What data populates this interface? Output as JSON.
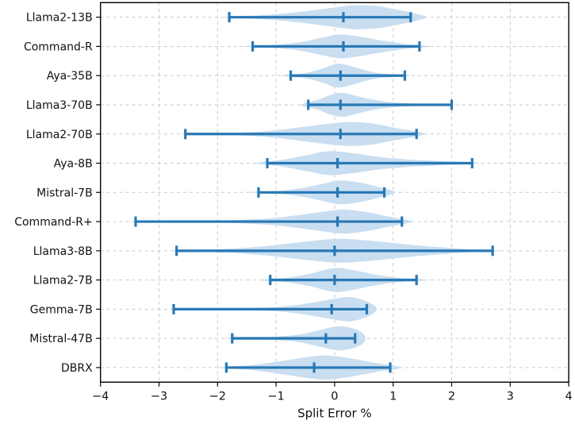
{
  "colors": {
    "line": "#2878b5",
    "fill": "#c9def0",
    "grid": "#c9c9c9",
    "spine": "#000000",
    "text": "#111111",
    "background": "#ffffff"
  },
  "chart_data": {
    "type": "violin",
    "orientation": "horizontal",
    "title": "",
    "xlabel": "Split Error %",
    "ylabel": "",
    "xlim": [
      -4,
      4
    ],
    "xticks": [
      -4,
      -3,
      -2,
      -1,
      0,
      1,
      2,
      3,
      4
    ],
    "xtick_labels": [
      "−4",
      "−3",
      "−2",
      "−1",
      "0",
      "1",
      "2",
      "3",
      "4"
    ],
    "grid": true,
    "grid_style": "dashed",
    "legend": "none",
    "categories": [
      "Llama2-13B",
      "Command-R",
      "Aya-35B",
      "Llama3-70B",
      "Llama2-70B",
      "Aya-8B",
      "Mistral-7B",
      "Command-R+",
      "Llama3-8B",
      "Llama2-7B",
      "Gemma-7B",
      "Mistral-47B",
      "DBRX"
    ],
    "series": [
      {
        "name": "Llama2-13B",
        "whisker_min": -1.8,
        "median": 0.15,
        "whisker_max": 1.3,
        "kde": [
          [
            -1.9,
            0.03
          ],
          [
            -1.5,
            0.1
          ],
          [
            -1.0,
            0.25
          ],
          [
            -0.5,
            0.5
          ],
          [
            -0.1,
            0.75
          ],
          [
            0.3,
            1.0
          ],
          [
            0.7,
            0.95
          ],
          [
            1.0,
            0.7
          ],
          [
            1.3,
            0.4
          ],
          [
            1.55,
            0.08
          ]
        ]
      },
      {
        "name": "Command-R",
        "whisker_min": -1.4,
        "median": 0.15,
        "whisker_max": 1.45,
        "kde": [
          [
            -1.5,
            0.04
          ],
          [
            -1.1,
            0.12
          ],
          [
            -0.6,
            0.35
          ],
          [
            -0.2,
            0.75
          ],
          [
            0.1,
            1.0
          ],
          [
            0.45,
            0.8
          ],
          [
            0.8,
            0.5
          ],
          [
            1.2,
            0.22
          ],
          [
            1.6,
            0.05
          ]
        ]
      },
      {
        "name": "Aya-35B",
        "whisker_min": -0.75,
        "median": 0.1,
        "whisker_max": 1.2,
        "kde": [
          [
            -0.85,
            0.06
          ],
          [
            -0.5,
            0.22
          ],
          [
            -0.2,
            0.6
          ],
          [
            0.05,
            1.0
          ],
          [
            0.35,
            0.7
          ],
          [
            0.65,
            0.3
          ],
          [
            0.95,
            0.12
          ],
          [
            1.25,
            0.04
          ]
        ]
      },
      {
        "name": "Llama3-70B",
        "whisker_min": -0.45,
        "median": 0.1,
        "whisker_max": 2.0,
        "kde": [
          [
            -0.55,
            0.08
          ],
          [
            -0.3,
            0.4
          ],
          [
            -0.05,
            0.85
          ],
          [
            0.15,
            1.0
          ],
          [
            0.45,
            0.65
          ],
          [
            0.8,
            0.32
          ],
          [
            1.2,
            0.14
          ],
          [
            1.6,
            0.07
          ],
          [
            2.05,
            0.02
          ]
        ]
      },
      {
        "name": "Llama2-70B",
        "whisker_min": -2.55,
        "median": 0.1,
        "whisker_max": 1.4,
        "kde": [
          [
            -2.6,
            0.02
          ],
          [
            -2.0,
            0.06
          ],
          [
            -1.5,
            0.14
          ],
          [
            -1.0,
            0.32
          ],
          [
            -0.5,
            0.62
          ],
          [
            0.0,
            0.92
          ],
          [
            0.3,
            1.0
          ],
          [
            0.65,
            0.88
          ],
          [
            1.0,
            0.55
          ],
          [
            1.5,
            0.1
          ]
        ]
      },
      {
        "name": "Aya-8B",
        "whisker_min": -1.15,
        "median": 0.05,
        "whisker_max": 2.35,
        "kde": [
          [
            -1.3,
            0.06
          ],
          [
            -0.9,
            0.28
          ],
          [
            -0.5,
            0.65
          ],
          [
            -0.1,
            1.0
          ],
          [
            0.3,
            0.85
          ],
          [
            0.8,
            0.5
          ],
          [
            1.3,
            0.3
          ],
          [
            1.8,
            0.18
          ],
          [
            2.4,
            0.05
          ]
        ]
      },
      {
        "name": "Mistral-7B",
        "whisker_min": -1.3,
        "median": 0.05,
        "whisker_max": 0.85,
        "kde": [
          [
            -1.4,
            0.04
          ],
          [
            -1.0,
            0.12
          ],
          [
            -0.6,
            0.32
          ],
          [
            -0.2,
            0.72
          ],
          [
            0.1,
            1.0
          ],
          [
            0.45,
            0.8
          ],
          [
            0.75,
            0.45
          ],
          [
            1.0,
            0.12
          ]
        ]
      },
      {
        "name": "Command-R+",
        "whisker_min": -3.4,
        "median": 0.05,
        "whisker_max": 1.15,
        "kde": [
          [
            -3.45,
            0.01
          ],
          [
            -2.8,
            0.03
          ],
          [
            -2.2,
            0.07
          ],
          [
            -1.6,
            0.14
          ],
          [
            -1.0,
            0.32
          ],
          [
            -0.5,
            0.62
          ],
          [
            0.0,
            0.95
          ],
          [
            0.2,
            1.0
          ],
          [
            0.55,
            0.8
          ],
          [
            0.95,
            0.4
          ],
          [
            1.3,
            0.08
          ]
        ]
      },
      {
        "name": "Llama3-8B",
        "whisker_min": -2.7,
        "median": 0.0,
        "whisker_max": 2.7,
        "kde": [
          [
            -2.75,
            0.04
          ],
          [
            -2.2,
            0.1
          ],
          [
            -1.6,
            0.22
          ],
          [
            -1.0,
            0.48
          ],
          [
            -0.4,
            0.82
          ],
          [
            0.1,
            1.0
          ],
          [
            0.6,
            0.85
          ],
          [
            1.2,
            0.55
          ],
          [
            1.8,
            0.3
          ],
          [
            2.3,
            0.12
          ],
          [
            2.8,
            0.03
          ]
        ]
      },
      {
        "name": "Llama2-7B",
        "whisker_min": -1.1,
        "median": 0.0,
        "whisker_max": 1.4,
        "kde": [
          [
            -1.25,
            0.05
          ],
          [
            -0.8,
            0.2
          ],
          [
            -0.4,
            0.55
          ],
          [
            0.0,
            1.0
          ],
          [
            0.35,
            0.8
          ],
          [
            0.7,
            0.45
          ],
          [
            1.1,
            0.18
          ],
          [
            1.55,
            0.05
          ]
        ]
      },
      {
        "name": "Gemma-7B",
        "whisker_min": -2.75,
        "median": -0.05,
        "whisker_max": 0.55,
        "kde": [
          [
            -2.8,
            0.01
          ],
          [
            -2.2,
            0.04
          ],
          [
            -1.6,
            0.08
          ],
          [
            -1.1,
            0.15
          ],
          [
            -0.7,
            0.32
          ],
          [
            -0.3,
            0.62
          ],
          [
            0.1,
            0.95
          ],
          [
            0.3,
            1.0
          ],
          [
            0.55,
            0.65
          ],
          [
            0.7,
            0.2
          ]
        ]
      },
      {
        "name": "Mistral-47B",
        "whisker_min": -1.75,
        "median": -0.15,
        "whisker_max": 0.35,
        "kde": [
          [
            -1.85,
            0.03
          ],
          [
            -1.4,
            0.07
          ],
          [
            -1.0,
            0.14
          ],
          [
            -0.6,
            0.32
          ],
          [
            -0.25,
            0.7
          ],
          [
            0.05,
            1.0
          ],
          [
            0.3,
            0.85
          ],
          [
            0.5,
            0.35
          ]
        ]
      },
      {
        "name": "DBRX",
        "whisker_min": -1.85,
        "median": -0.35,
        "whisker_max": 0.95,
        "kde": [
          [
            -1.95,
            0.04
          ],
          [
            -1.4,
            0.22
          ],
          [
            -0.9,
            0.55
          ],
          [
            -0.4,
            0.92
          ],
          [
            -0.1,
            1.0
          ],
          [
            0.3,
            0.75
          ],
          [
            0.7,
            0.38
          ],
          [
            1.1,
            0.08
          ]
        ]
      }
    ]
  }
}
